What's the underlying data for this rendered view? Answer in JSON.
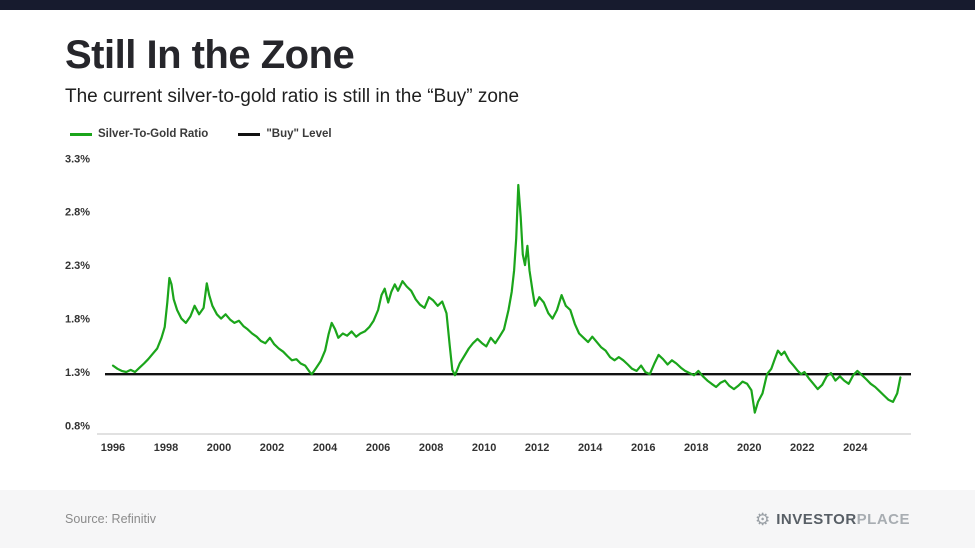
{
  "page": {
    "title": "Still In the Zone",
    "subtitle": "The current silver-to-gold ratio is still in the “Buy” zone",
    "source": "Source: Refinitiv",
    "brand": {
      "part1": "INVESTOR",
      "part2": "PLACE"
    }
  },
  "legend": [
    {
      "label": "Silver-To-Gold Ratio",
      "color": "#1BA51B"
    },
    {
      "label": "\"Buy\" Level",
      "color": "#111111"
    }
  ],
  "colors": {
    "top_bar": "#171b2e",
    "axis": "#c3c3c3",
    "ratio_line": "#1BA51B",
    "buy_line": "#111111"
  },
  "chart_data": {
    "type": "line",
    "title": "Still In the Zone",
    "subtitle": "The current silver-to-gold ratio is still in the “Buy” zone",
    "xlabel": "",
    "ylabel": "",
    "grid": false,
    "legend_position": "top-left",
    "xlim": [
      1995.7,
      2026.1
    ],
    "ylim": [
      0.72,
      3.34
    ],
    "buy_level": 1.28,
    "buy_color": "#111111",
    "y_ticks": [
      {
        "label": "3.3%",
        "value": 3.3
      },
      {
        "label": "2.8%",
        "value": 2.8
      },
      {
        "label": "2.3%",
        "value": 2.3
      },
      {
        "label": "1.8%",
        "value": 1.8
      },
      {
        "label": "1.3%",
        "value": 1.3
      },
      {
        "label": "0.8%",
        "value": 0.8
      }
    ],
    "x_ticks": [
      {
        "label": "1996",
        "value": 1996
      },
      {
        "label": "1998",
        "value": 1998
      },
      {
        "label": "2000",
        "value": 2000
      },
      {
        "label": "2002",
        "value": 2002
      },
      {
        "label": "2004",
        "value": 2004
      },
      {
        "label": "2006",
        "value": 2006
      },
      {
        "label": "2008",
        "value": 2008
      },
      {
        "label": "2010",
        "value": 2010
      },
      {
        "label": "2012",
        "value": 2012
      },
      {
        "label": "2014",
        "value": 2014
      },
      {
        "label": "2016",
        "value": 2016
      },
      {
        "label": "2018",
        "value": 2018
      },
      {
        "label": "2020",
        "value": 2020
      },
      {
        "label": "2022",
        "value": 2022
      },
      {
        "label": "2024",
        "value": 2024
      }
    ],
    "series": [
      {
        "name": "Silver-To-Gold Ratio",
        "color": "#1BA51B",
        "points": [
          [
            1996.0,
            1.36
          ],
          [
            1996.17,
            1.33
          ],
          [
            1996.33,
            1.31
          ],
          [
            1996.5,
            1.3
          ],
          [
            1996.67,
            1.32
          ],
          [
            1996.83,
            1.3
          ],
          [
            1997.0,
            1.34
          ],
          [
            1997.17,
            1.38
          ],
          [
            1997.33,
            1.42
          ],
          [
            1997.5,
            1.47
          ],
          [
            1997.67,
            1.52
          ],
          [
            1997.83,
            1.62
          ],
          [
            1997.95,
            1.72
          ],
          [
            1998.05,
            1.95
          ],
          [
            1998.13,
            2.18
          ],
          [
            1998.21,
            2.12
          ],
          [
            1998.29,
            1.98
          ],
          [
            1998.42,
            1.88
          ],
          [
            1998.58,
            1.8
          ],
          [
            1998.75,
            1.76
          ],
          [
            1998.92,
            1.82
          ],
          [
            1999.08,
            1.92
          ],
          [
            1999.25,
            1.84
          ],
          [
            1999.42,
            1.9
          ],
          [
            1999.54,
            2.13
          ],
          [
            1999.63,
            2.02
          ],
          [
            1999.75,
            1.92
          ],
          [
            1999.92,
            1.84
          ],
          [
            2000.08,
            1.8
          ],
          [
            2000.25,
            1.84
          ],
          [
            2000.42,
            1.79
          ],
          [
            2000.58,
            1.76
          ],
          [
            2000.75,
            1.78
          ],
          [
            2000.92,
            1.73
          ],
          [
            2001.08,
            1.7
          ],
          [
            2001.25,
            1.66
          ],
          [
            2001.42,
            1.63
          ],
          [
            2001.58,
            1.59
          ],
          [
            2001.75,
            1.57
          ],
          [
            2001.92,
            1.62
          ],
          [
            2002.08,
            1.56
          ],
          [
            2002.25,
            1.52
          ],
          [
            2002.42,
            1.49
          ],
          [
            2002.58,
            1.45
          ],
          [
            2002.75,
            1.41
          ],
          [
            2002.92,
            1.42
          ],
          [
            2003.08,
            1.38
          ],
          [
            2003.25,
            1.36
          ],
          [
            2003.42,
            1.3
          ],
          [
            2003.5,
            1.28
          ],
          [
            2003.67,
            1.34
          ],
          [
            2003.83,
            1.4
          ],
          [
            2004.0,
            1.5
          ],
          [
            2004.13,
            1.65
          ],
          [
            2004.25,
            1.76
          ],
          [
            2004.38,
            1.7
          ],
          [
            2004.5,
            1.62
          ],
          [
            2004.67,
            1.66
          ],
          [
            2004.83,
            1.64
          ],
          [
            2005.0,
            1.68
          ],
          [
            2005.17,
            1.63
          ],
          [
            2005.33,
            1.66
          ],
          [
            2005.5,
            1.68
          ],
          [
            2005.67,
            1.72
          ],
          [
            2005.83,
            1.78
          ],
          [
            2006.0,
            1.88
          ],
          [
            2006.13,
            2.02
          ],
          [
            2006.25,
            2.08
          ],
          [
            2006.38,
            1.95
          ],
          [
            2006.5,
            2.05
          ],
          [
            2006.63,
            2.12
          ],
          [
            2006.75,
            2.06
          ],
          [
            2006.92,
            2.15
          ],
          [
            2007.08,
            2.1
          ],
          [
            2007.25,
            2.06
          ],
          [
            2007.42,
            1.98
          ],
          [
            2007.58,
            1.93
          ],
          [
            2007.75,
            1.9
          ],
          [
            2007.92,
            2.0
          ],
          [
            2008.08,
            1.97
          ],
          [
            2008.25,
            1.92
          ],
          [
            2008.42,
            1.96
          ],
          [
            2008.58,
            1.85
          ],
          [
            2008.7,
            1.55
          ],
          [
            2008.8,
            1.32
          ],
          [
            2008.9,
            1.27
          ],
          [
            2009.08,
            1.38
          ],
          [
            2009.25,
            1.45
          ],
          [
            2009.42,
            1.52
          ],
          [
            2009.58,
            1.57
          ],
          [
            2009.75,
            1.61
          ],
          [
            2009.92,
            1.57
          ],
          [
            2010.08,
            1.54
          ],
          [
            2010.25,
            1.62
          ],
          [
            2010.42,
            1.57
          ],
          [
            2010.58,
            1.63
          ],
          [
            2010.75,
            1.7
          ],
          [
            2010.92,
            1.88
          ],
          [
            2011.04,
            2.05
          ],
          [
            2011.13,
            2.25
          ],
          [
            2011.21,
            2.55
          ],
          [
            2011.29,
            3.05
          ],
          [
            2011.38,
            2.75
          ],
          [
            2011.46,
            2.4
          ],
          [
            2011.54,
            2.3
          ],
          [
            2011.63,
            2.48
          ],
          [
            2011.71,
            2.25
          ],
          [
            2011.83,
            2.05
          ],
          [
            2011.92,
            1.92
          ],
          [
            2012.08,
            2.0
          ],
          [
            2012.25,
            1.95
          ],
          [
            2012.42,
            1.85
          ],
          [
            2012.58,
            1.8
          ],
          [
            2012.75,
            1.88
          ],
          [
            2012.92,
            2.02
          ],
          [
            2013.08,
            1.92
          ],
          [
            2013.25,
            1.88
          ],
          [
            2013.42,
            1.75
          ],
          [
            2013.58,
            1.66
          ],
          [
            2013.75,
            1.62
          ],
          [
            2013.92,
            1.58
          ],
          [
            2014.08,
            1.63
          ],
          [
            2014.25,
            1.58
          ],
          [
            2014.42,
            1.53
          ],
          [
            2014.58,
            1.5
          ],
          [
            2014.75,
            1.44
          ],
          [
            2014.92,
            1.41
          ],
          [
            2015.08,
            1.44
          ],
          [
            2015.25,
            1.41
          ],
          [
            2015.42,
            1.37
          ],
          [
            2015.58,
            1.33
          ],
          [
            2015.75,
            1.31
          ],
          [
            2015.92,
            1.36
          ],
          [
            2016.08,
            1.3
          ],
          [
            2016.25,
            1.28
          ],
          [
            2016.42,
            1.38
          ],
          [
            2016.58,
            1.46
          ],
          [
            2016.75,
            1.42
          ],
          [
            2016.92,
            1.37
          ],
          [
            2017.08,
            1.41
          ],
          [
            2017.25,
            1.38
          ],
          [
            2017.42,
            1.34
          ],
          [
            2017.58,
            1.31
          ],
          [
            2017.75,
            1.29
          ],
          [
            2017.92,
            1.27
          ],
          [
            2018.08,
            1.31
          ],
          [
            2018.25,
            1.26
          ],
          [
            2018.42,
            1.22
          ],
          [
            2018.58,
            1.19
          ],
          [
            2018.75,
            1.16
          ],
          [
            2018.92,
            1.2
          ],
          [
            2019.08,
            1.22
          ],
          [
            2019.25,
            1.17
          ],
          [
            2019.42,
            1.14
          ],
          [
            2019.58,
            1.17
          ],
          [
            2019.75,
            1.21
          ],
          [
            2019.92,
            1.19
          ],
          [
            2020.08,
            1.13
          ],
          [
            2020.21,
            0.92
          ],
          [
            2020.33,
            1.02
          ],
          [
            2020.5,
            1.1
          ],
          [
            2020.67,
            1.28
          ],
          [
            2020.83,
            1.33
          ],
          [
            2020.96,
            1.42
          ],
          [
            2021.08,
            1.5
          ],
          [
            2021.21,
            1.46
          ],
          [
            2021.33,
            1.49
          ],
          [
            2021.5,
            1.41
          ],
          [
            2021.67,
            1.36
          ],
          [
            2021.83,
            1.31
          ],
          [
            2021.96,
            1.28
          ],
          [
            2022.08,
            1.3
          ],
          [
            2022.25,
            1.24
          ],
          [
            2022.42,
            1.19
          ],
          [
            2022.58,
            1.14
          ],
          [
            2022.75,
            1.18
          ],
          [
            2022.92,
            1.26
          ],
          [
            2023.08,
            1.29
          ],
          [
            2023.25,
            1.22
          ],
          [
            2023.42,
            1.26
          ],
          [
            2023.58,
            1.22
          ],
          [
            2023.75,
            1.19
          ],
          [
            2023.92,
            1.27
          ],
          [
            2024.08,
            1.31
          ],
          [
            2024.25,
            1.27
          ],
          [
            2024.42,
            1.23
          ],
          [
            2024.58,
            1.19
          ],
          [
            2024.75,
            1.16
          ],
          [
            2024.92,
            1.12
          ],
          [
            2025.08,
            1.08
          ],
          [
            2025.25,
            1.04
          ],
          [
            2025.42,
            1.02
          ],
          [
            2025.58,
            1.1
          ],
          [
            2025.7,
            1.25
          ]
        ]
      },
      {
        "name": "\"Buy\" Level",
        "color": "#111111",
        "value": 1.28
      }
    ]
  }
}
